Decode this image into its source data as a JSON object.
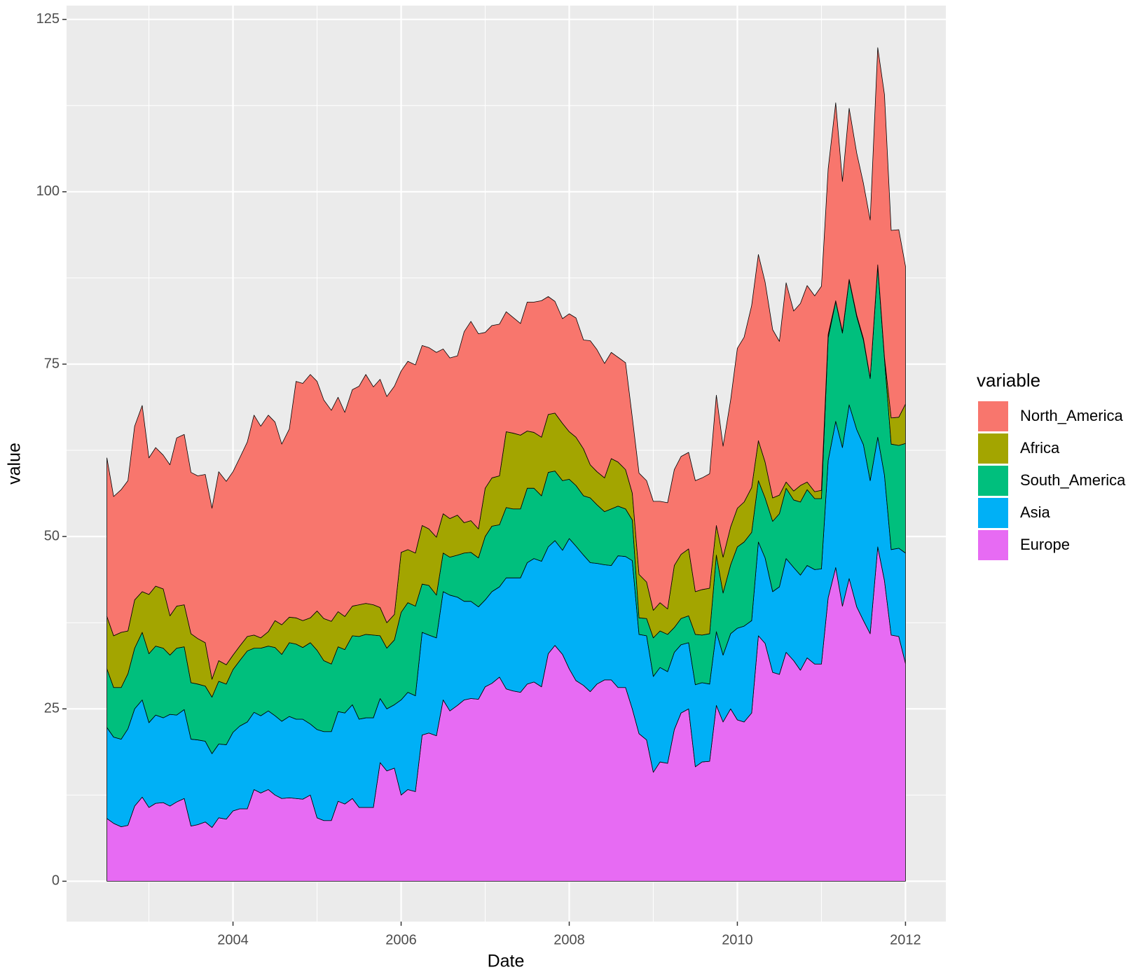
{
  "chart_data": {
    "type": "area",
    "stacked": true,
    "x_label": "Date",
    "y_label": "value",
    "legend_title": "variable",
    "legend": "right",
    "grid": true,
    "xlim": [
      2002.02,
      2012.48
    ],
    "xticks": [
      2004,
      2006,
      2008,
      2010,
      2012
    ],
    "ylim": [
      -5.85,
      127.0
    ],
    "yticks": [
      0,
      25,
      50,
      75,
      100,
      125
    ],
    "x": [
      2002.5,
      2002.58,
      2002.67,
      2002.75,
      2002.83,
      2002.92,
      2003,
      2003.08,
      2003.17,
      2003.25,
      2003.33,
      2003.42,
      2003.5,
      2003.58,
      2003.67,
      2003.75,
      2003.83,
      2003.92,
      2004,
      2004.08,
      2004.17,
      2004.25,
      2004.33,
      2004.42,
      2004.5,
      2004.58,
      2004.67,
      2004.75,
      2004.83,
      2004.92,
      2005,
      2005.08,
      2005.17,
      2005.25,
      2005.33,
      2005.42,
      2005.5,
      2005.58,
      2005.67,
      2005.75,
      2005.83,
      2005.92,
      2006,
      2006.08,
      2006.17,
      2006.25,
      2006.33,
      2006.42,
      2006.5,
      2006.58,
      2006.67,
      2006.75,
      2006.83,
      2006.92,
      2007,
      2007.08,
      2007.17,
      2007.25,
      2007.33,
      2007.42,
      2007.5,
      2007.58,
      2007.67,
      2007.75,
      2007.83,
      2007.92,
      2008,
      2008.08,
      2008.17,
      2008.25,
      2008.33,
      2008.42,
      2008.5,
      2008.58,
      2008.67,
      2008.75,
      2008.83,
      2008.92,
      2009,
      2009.08,
      2009.17,
      2009.25,
      2009.33,
      2009.42,
      2009.5,
      2009.58,
      2009.67,
      2009.75,
      2009.83,
      2009.92,
      2010,
      2010.08,
      2010.17,
      2010.25,
      2010.33,
      2010.42,
      2010.5,
      2010.58,
      2010.67,
      2010.75,
      2010.83,
      2010.92,
      2011,
      2011.08,
      2011.17,
      2011.25,
      2011.33,
      2011.42,
      2011.5,
      2011.58,
      2011.67,
      2011.75,
      2011.83,
      2011.92,
      2012
    ],
    "series": [
      {
        "name": "Europe",
        "color": "#E76BF3",
        "values": [
          9.1,
          8.4,
          7.9,
          8.1,
          10.9,
          12.2,
          10.7,
          11.3,
          11.4,
          10.9,
          11.5,
          12.0,
          8.0,
          8.2,
          8.6,
          7.8,
          9.2,
          9.0,
          10.2,
          10.5,
          10.5,
          13.3,
          12.8,
          13.3,
          12.5,
          12.0,
          12.1,
          12.0,
          11.9,
          12.5,
          9.2,
          8.8,
          8.8,
          11.6,
          11.2,
          12.0,
          10.7,
          10.7,
          10.7,
          17.2,
          16.0,
          16.4,
          12.5,
          13.3,
          13.0,
          21.2,
          21.5,
          21.1,
          26.3,
          24.7,
          25.5,
          26.3,
          26.5,
          26.4,
          28.2,
          28.7,
          29.6,
          27.9,
          27.6,
          27.4,
          28.6,
          28.9,
          28.2,
          33.0,
          34.2,
          32.9,
          30.8,
          29.1,
          28.4,
          27.5,
          28.6,
          29.2,
          29.2,
          28.1,
          28.1,
          25.0,
          21.4,
          20.5,
          15.8,
          17.3,
          17.1,
          22.0,
          24.4,
          25.0,
          16.6,
          17.3,
          17.4,
          25.5,
          23.1,
          25.0,
          23.4,
          23.1,
          24.4,
          35.6,
          34.5,
          30.3,
          30.0,
          33.2,
          32.0,
          30.6,
          32.4,
          31.5,
          31.5,
          41.1,
          45.5,
          39.9,
          43.9,
          39.8,
          37.8,
          35.9,
          48.5,
          43.6,
          35.7,
          35.5,
          31.6
        ]
      },
      {
        "name": "Asia",
        "color": "#00B0F6",
        "values": [
          13.2,
          12.5,
          12.7,
          14.0,
          14.1,
          14.1,
          12.3,
          12.8,
          12.3,
          13.3,
          12.6,
          12.9,
          12.6,
          12.3,
          11.7,
          10.7,
          10.7,
          10.8,
          11.4,
          12.0,
          12.6,
          11.2,
          11.2,
          11.4,
          11.5,
          11.2,
          11.8,
          11.5,
          11.6,
          10.3,
          12.8,
          12.9,
          12.9,
          13.0,
          13.2,
          13.6,
          12.8,
          13.0,
          13.0,
          9.3,
          9.0,
          9.2,
          13.8,
          14.1,
          13.9,
          14.9,
          14.2,
          14.2,
          15.7,
          16.8,
          15.7,
          14.3,
          14.1,
          13.4,
          12.6,
          13.3,
          13.1,
          16.1,
          16.4,
          16.6,
          17.6,
          17.9,
          18.2,
          15.5,
          15.2,
          15.1,
          18.9,
          19.5,
          18.9,
          18.7,
          17.5,
          16.7,
          16.6,
          19.1,
          19.0,
          21.5,
          14.4,
          15.1,
          13.9,
          13.7,
          13.3,
          11.2,
          9.9,
          9.6,
          11.9,
          11.5,
          11.2,
          10.7,
          9.7,
          10.9,
          13.3,
          13.9,
          13.4,
          13.6,
          12.4,
          11.7,
          12.7,
          13.6,
          13.5,
          13.8,
          13.4,
          13.7,
          13.8,
          19.9,
          21.2,
          23.0,
          25.2,
          25.7,
          25.5,
          22.2,
          15.9,
          15.3,
          12.4,
          12.8,
          16.0
        ]
      },
      {
        "name": "South_America",
        "color": "#00BF7D",
        "values": [
          8.5,
          7.2,
          7.5,
          8.0,
          8.8,
          9.8,
          10.0,
          10.0,
          10.1,
          8.6,
          9.7,
          9.1,
          8.2,
          8.1,
          8.0,
          8.2,
          9.1,
          8.8,
          9.1,
          9.5,
          10.3,
          9.3,
          9.8,
          9.4,
          9.9,
          9.7,
          10.7,
          10.9,
          10.4,
          11.8,
          11.5,
          10.3,
          9.8,
          9.4,
          9.2,
          10.0,
          12.0,
          12.1,
          12.0,
          9.1,
          8.8,
          9.4,
          12.7,
          13.0,
          13.0,
          7.0,
          7.2,
          6.2,
          5.6,
          5.5,
          6.1,
          7.0,
          7.1,
          7.1,
          9.2,
          9.5,
          9.0,
          10.2,
          10.0,
          10.0,
          10.8,
          10.2,
          9.5,
          10.8,
          10.1,
          10.1,
          8.6,
          8.8,
          8.6,
          9.4,
          8.5,
          7.7,
          8.2,
          7.2,
          6.9,
          5.9,
          2.4,
          2.5,
          5.6,
          5.3,
          5.4,
          3.6,
          3.8,
          3.9,
          7.3,
          6.9,
          7.3,
          11.1,
          9.0,
          10.0,
          11.8,
          12.2,
          12.8,
          8.9,
          8.7,
          10.2,
          10.6,
          10.2,
          9.8,
          10.6,
          11.0,
          10.3,
          10.2,
          17.8,
          17.4,
          16.6,
          18.1,
          16.4,
          15.2,
          14.8,
          24.8,
          16.9,
          15.3,
          14.9,
          15.9
        ]
      },
      {
        "name": "Africa",
        "color": "#A3A500",
        "values": [
          7.6,
          7.5,
          8.0,
          6.2,
          7.0,
          5.9,
          8.6,
          8.7,
          8.6,
          5.7,
          6.1,
          6.1,
          7.1,
          6.6,
          6.3,
          2.6,
          3.0,
          2.8,
          2.1,
          2.1,
          2.1,
          1.9,
          1.5,
          2.1,
          3.9,
          4.3,
          3.7,
          3.8,
          3.9,
          3.6,
          5.7,
          6.1,
          6.2,
          5.1,
          4.8,
          4.3,
          4.6,
          4.5,
          4.4,
          4.1,
          3.7,
          3.7,
          8.7,
          7.7,
          7.7,
          8.5,
          8.2,
          8.4,
          5.7,
          5.6,
          5.8,
          4.4,
          4.6,
          4.2,
          7.0,
          7.0,
          7.1,
          11.0,
          11.0,
          10.7,
          8.3,
          8.1,
          8.5,
          8.4,
          8.4,
          8.3,
          6.9,
          7.0,
          6.8,
          4.8,
          4.8,
          4.9,
          7.3,
          6.4,
          5.7,
          3.9,
          6.3,
          5.3,
          4.0,
          4.1,
          3.7,
          9.0,
          9.3,
          9.7,
          6.2,
          6.6,
          6.6,
          4.3,
          5.2,
          5.5,
          5.6,
          5.8,
          6.5,
          5.8,
          5.2,
          3.4,
          2.7,
          0.9,
          1.3,
          2.4,
          1.1,
          1.0,
          1.2,
          0.5,
          0.1,
          0.2,
          0.1,
          0.2,
          0.2,
          0.1,
          0.2,
          0.2,
          3.8,
          4.1,
          5.7
        ]
      },
      {
        "name": "North_America",
        "color": "#F8766D",
        "values": [
          23.0,
          20.2,
          20.7,
          21.8,
          25.2,
          27.0,
          19.8,
          20.1,
          19.4,
          21.9,
          24.4,
          24.7,
          23.4,
          23.6,
          24.4,
          24.8,
          27.4,
          26.6,
          26.6,
          27.3,
          28.2,
          31.9,
          30.7,
          31.4,
          28.8,
          26.2,
          27.3,
          34.3,
          34.4,
          35.3,
          33.3,
          31.7,
          30.6,
          31.1,
          29.6,
          31.4,
          31.7,
          33.2,
          31.6,
          33.1,
          32.8,
          33.1,
          26.3,
          27.3,
          27.3,
          26.1,
          26.3,
          26.8,
          23.9,
          23.3,
          23.1,
          27.7,
          28.9,
          28.3,
          22.6,
          22.1,
          22.0,
          17.4,
          16.8,
          16.2,
          18.7,
          18.9,
          19.8,
          17.1,
          16.2,
          15.2,
          17.1,
          17.3,
          15.8,
          18.0,
          17.7,
          16.6,
          15.4,
          15.2,
          15.5,
          11.0,
          14.7,
          14.7,
          15.8,
          14.7,
          15.4,
          13.9,
          14.2,
          14.0,
          16.1,
          16.2,
          16.6,
          18.9,
          16.1,
          18.4,
          23.2,
          23.9,
          26.4,
          27.0,
          26.1,
          24.4,
          22.3,
          28.9,
          26.1,
          26.4,
          28.5,
          28.4,
          29.6,
          24.0,
          28.7,
          21.8,
          24.8,
          23.5,
          22.5,
          22.9,
          31.5,
          38.1,
          27.2,
          27.2,
          20.0
        ]
      }
    ]
  }
}
